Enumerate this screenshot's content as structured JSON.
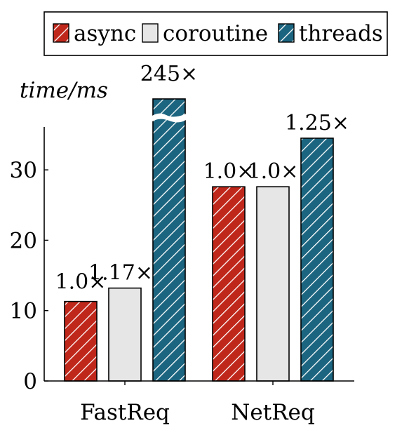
{
  "chart_data": {
    "type": "bar",
    "ylabel": "time/ms",
    "categories": [
      "FastReq",
      "NetReq"
    ],
    "y_ticks": [
      0,
      10,
      20,
      30
    ],
    "ylim": [
      0,
      36
    ],
    "legend_placement": "top",
    "grid": false,
    "axis_break": true,
    "series": [
      {
        "name": "async",
        "color": "#c0271b",
        "pattern": "diagonal-hatch",
        "values": [
          11.3,
          27.6
        ],
        "labels": [
          "1.0×",
          "1.0×"
        ]
      },
      {
        "name": "coroutine",
        "color": "#e6e6e6",
        "pattern": "none",
        "values": [
          13.2,
          27.6
        ],
        "labels": [
          "1.17×",
          "1.0×"
        ]
      },
      {
        "name": "threads",
        "color": "#1c6580",
        "pattern": "diagonal-hatch",
        "values": [
          2769,
          34.5
        ],
        "labels": [
          "245×",
          "1.25×"
        ]
      }
    ]
  }
}
